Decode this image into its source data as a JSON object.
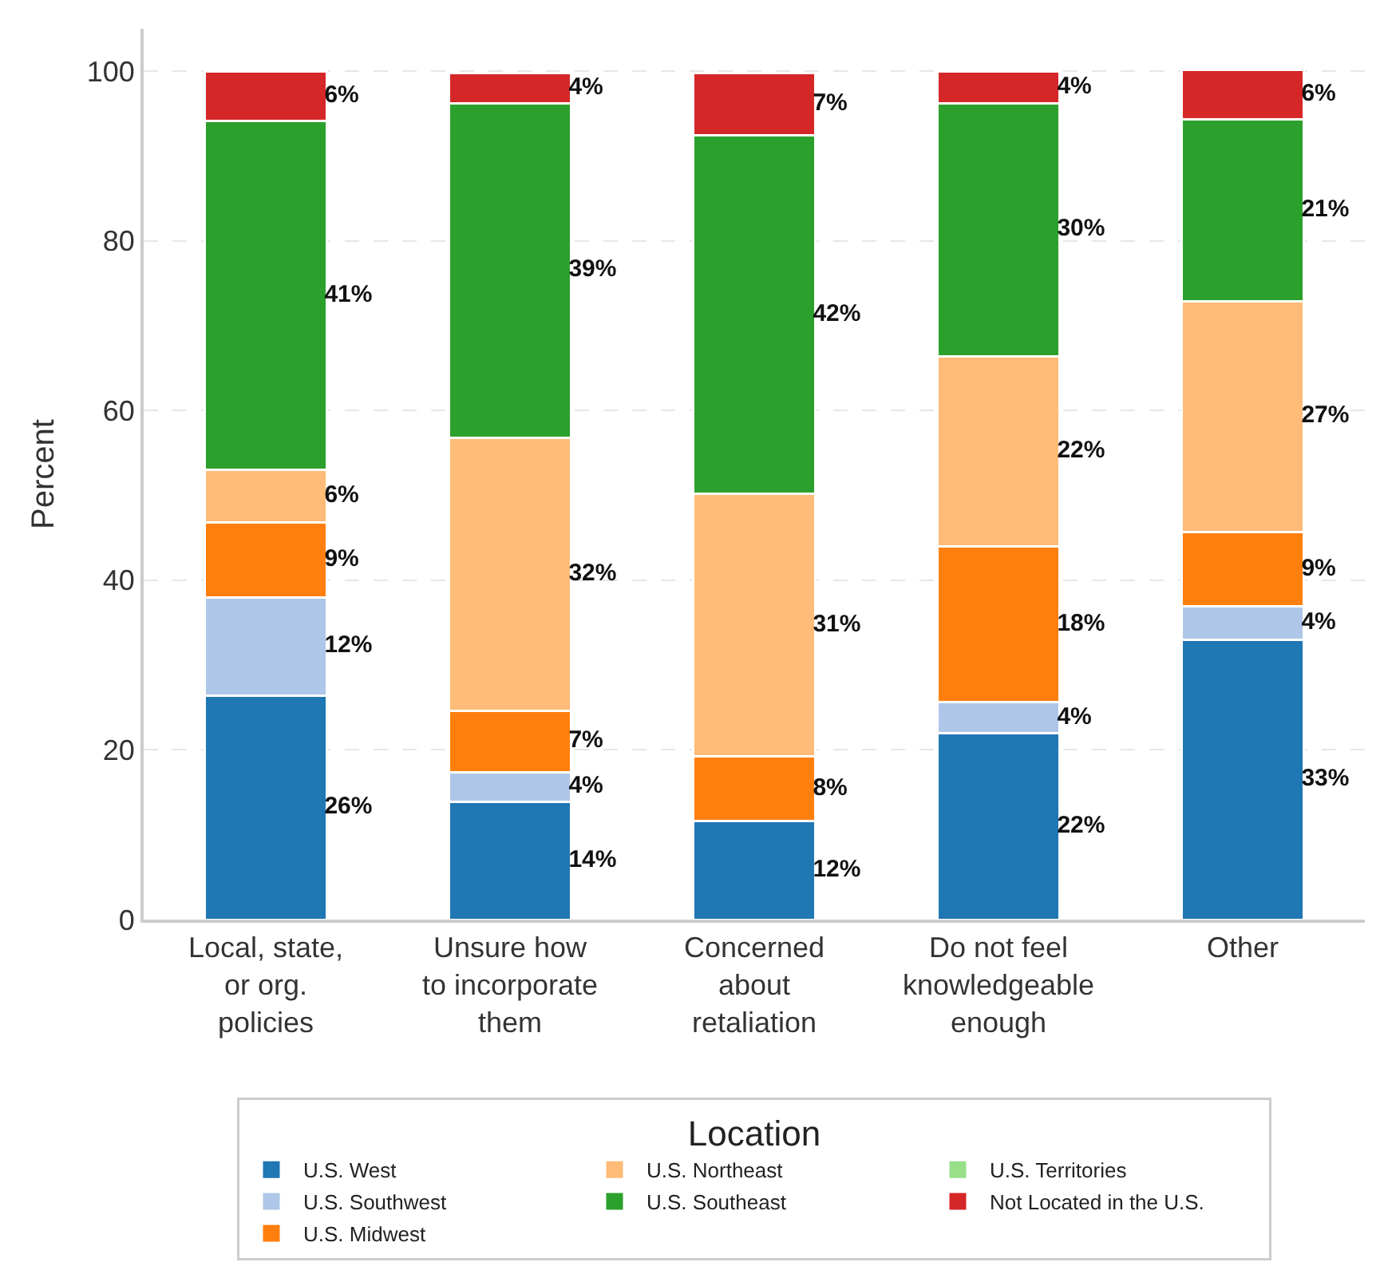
{
  "chart_data": {
    "type": "bar",
    "stacked": true,
    "ylabel": "Percent",
    "legend_title": "Location",
    "legend": "bottom",
    "grid": "y",
    "categories": [
      "Local, state,\nor org.\npolicies",
      "Unsure how\nto incorporate\nthem",
      "Concerned\nabout\nretaliation",
      "Do not feel\nknowledgeable\nenough",
      "Other"
    ],
    "ylim": [
      0,
      105
    ],
    "yticks": [
      0,
      20,
      40,
      60,
      80,
      100
    ],
    "series": [
      {
        "name": "U.S. West",
        "color": "#1f77b4",
        "values": [
          26.4,
          13.9,
          11.6,
          22.0,
          33.0
        ],
        "value_labels": [
          "26%",
          "14%",
          "12%",
          "22%",
          "33%"
        ]
      },
      {
        "name": "U.S. Southwest",
        "color": "#aec7e8",
        "values": [
          11.6,
          3.5,
          null,
          3.6,
          3.9
        ],
        "value_labels": [
          "12%",
          "4%",
          null,
          "4%",
          "4%"
        ]
      },
      {
        "name": "U.S. Midwest",
        "color": "#ff7f0e",
        "values": [
          8.8,
          7.2,
          7.6,
          18.4,
          8.8
        ],
        "value_labels": [
          "9%",
          "7%",
          "8%",
          "18%",
          "9%"
        ]
      },
      {
        "name": "U.S. Northeast",
        "color": "#ffbb78",
        "values": [
          6.2,
          32.2,
          31.0,
          22.4,
          27.2
        ],
        "value_labels": [
          "6%",
          "32%",
          "31%",
          "22%",
          "27%"
        ]
      },
      {
        "name": "U.S. Southeast",
        "color": "#2ca02c",
        "values": [
          41.1,
          39.4,
          42.2,
          29.8,
          21.4
        ],
        "value_labels": [
          "41%",
          "39%",
          "42%",
          "30%",
          "21%"
        ]
      },
      {
        "name": "U.S. Territories",
        "color": "#98df8a",
        "values": [
          null,
          null,
          null,
          null,
          null
        ],
        "value_labels": [
          null,
          null,
          null,
          null,
          null
        ]
      },
      {
        "name": "Not Located in the U.S.",
        "color": "#d62728",
        "values": [
          5.9,
          3.6,
          7.4,
          3.8,
          5.9
        ],
        "value_labels": [
          "6%",
          "4%",
          "7%",
          "4%",
          "6%"
        ]
      }
    ]
  }
}
